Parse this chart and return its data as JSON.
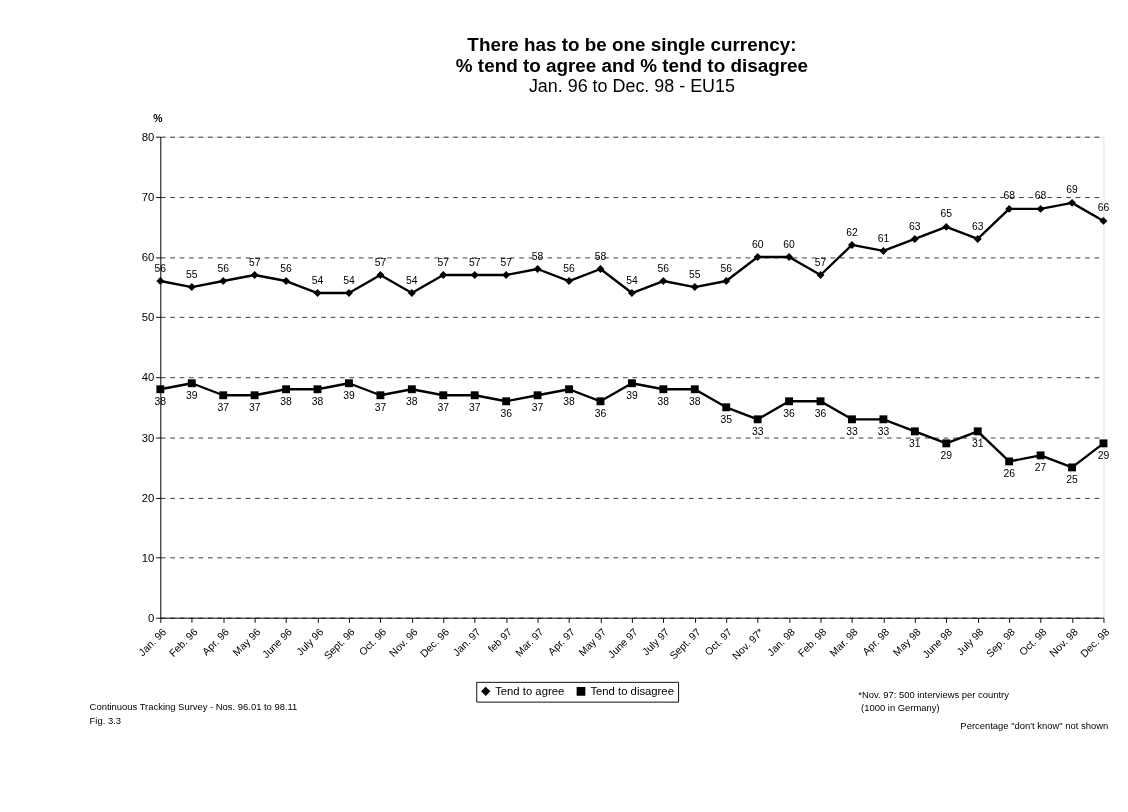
{
  "chart_data": {
    "type": "line",
    "title": "There has to be one single currency:\n% tend to agree and % tend to disagree",
    "subtitle": "Jan. 96 to Dec. 98 - EU15",
    "ylabel": "%",
    "categories": [
      "Jan. 96",
      "Feb. 96",
      "Apr. 96",
      "May 96",
      "June 96",
      "July 96",
      "Sept. 96",
      "Oct. 96",
      "Nov. 96",
      "Dec. 96",
      "Jan. 97",
      "feb 97",
      "Mar. 97",
      "Apr. 97",
      "May 97",
      "June 97",
      "July 97",
      "Sept. 97",
      "Oct. 97",
      "Nov. 97*",
      "Jan. 98",
      "Feb. 98",
      "Mar. 98",
      "Apr. 98",
      "May 98",
      "June 98",
      "July 98",
      "Sep. 98",
      "Oct. 98",
      "Nov. 98",
      "Dec. 98"
    ],
    "series": [
      {
        "name": "Tend to agree",
        "color": "#000000",
        "marker": "diamond",
        "values": [
          56,
          55,
          56,
          57,
          56,
          54,
          54,
          57,
          54,
          57,
          57,
          57,
          58,
          56,
          58,
          54,
          56,
          55,
          56,
          60,
          60,
          57,
          62,
          61,
          63,
          65,
          63,
          68,
          68,
          69,
          66
        ]
      },
      {
        "name": "Tend to disagree",
        "color": "#000000",
        "marker": "square",
        "values": [
          38,
          39,
          37,
          37,
          38,
          38,
          39,
          37,
          38,
          37,
          37,
          36,
          37,
          38,
          36,
          39,
          38,
          38,
          35,
          33,
          36,
          36,
          33,
          33,
          31,
          29,
          31,
          26,
          27,
          25,
          29
        ]
      }
    ],
    "ylim": [
      0,
      80
    ],
    "yticks": [
      0,
      10,
      20,
      30,
      40,
      50,
      60,
      70,
      80
    ],
    "grid": "y",
    "legend": "bottom",
    "data_labels": true,
    "line_style": "solid",
    "annotations": [
      "Continuous Tracking Survey - Nos. 96.01 to 98.11",
      "Fig. 3.3",
      "*Nov. 97: 500 interviews per country",
      "(1000 in Germany)",
      "Percentage \"don't know\" not shown"
    ]
  }
}
